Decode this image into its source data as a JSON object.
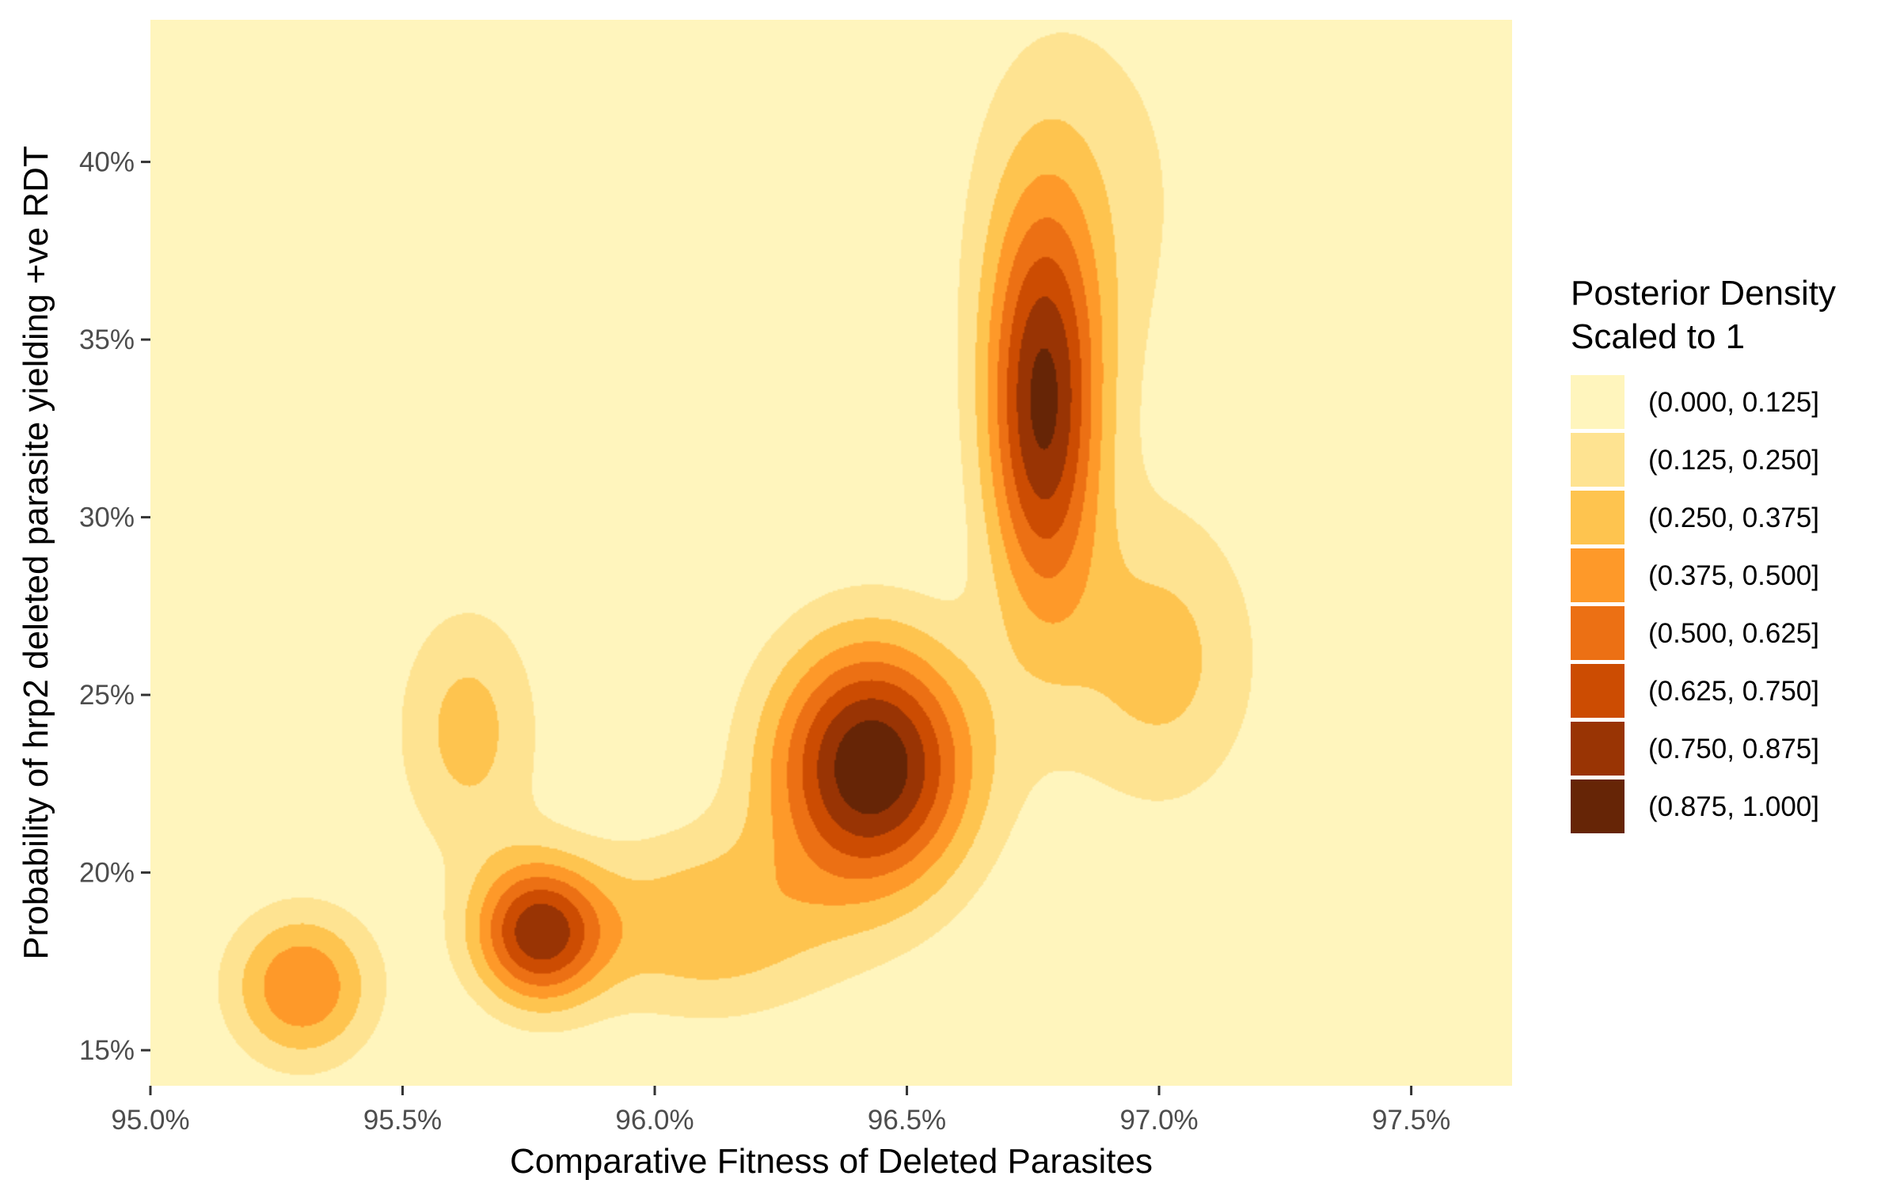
{
  "chart_data": {
    "type": "contour",
    "xlabel": "Comparative Fitness of Deleted Parasites",
    "ylabel": "Probability of hrp2 deleted parasite yielding +ve RDT",
    "xlim": [
      0.95,
      0.977
    ],
    "ylim": [
      0.14,
      0.44
    ],
    "x_ticks": [
      {
        "value": 0.95,
        "label": "95.0%"
      },
      {
        "value": 0.955,
        "label": "95.5%"
      },
      {
        "value": 0.96,
        "label": "96.0%"
      },
      {
        "value": 0.965,
        "label": "96.5%"
      },
      {
        "value": 0.97,
        "label": "97.0%"
      },
      {
        "value": 0.975,
        "label": "97.5%"
      }
    ],
    "y_ticks": [
      {
        "value": 0.15,
        "label": "15%"
      },
      {
        "value": 0.2,
        "label": "20%"
      },
      {
        "value": 0.25,
        "label": "25%"
      },
      {
        "value": 0.3,
        "label": "30%"
      },
      {
        "value": 0.35,
        "label": "35%"
      },
      {
        "value": 0.4,
        "label": "40%"
      }
    ],
    "grid": false,
    "legend": {
      "position": "right",
      "title_lines": [
        "Posterior Density",
        "Scaled to 1"
      ],
      "entries": [
        {
          "label": "(0.000, 0.125]",
          "color": "#fff5bd"
        },
        {
          "label": "(0.125, 0.250]",
          "color": "#fee391"
        },
        {
          "label": "(0.250, 0.375]",
          "color": "#fec44f"
        },
        {
          "label": "(0.375, 0.500]",
          "color": "#fe9929"
        },
        {
          "label": "(0.500, 0.625]",
          "color": "#ec7014"
        },
        {
          "label": "(0.625, 0.750]",
          "color": "#cc4c02"
        },
        {
          "label": "(0.750, 0.875]",
          "color": "#993404"
        },
        {
          "label": "(0.875, 1.000]",
          "color": "#662506"
        }
      ]
    },
    "density_peaks": [
      {
        "x": 0.9677,
        "y": 0.33,
        "sx": 0.0008,
        "sy": 0.04,
        "w": 0.85
      },
      {
        "x": 0.9643,
        "y": 0.23,
        "sx": 0.0014,
        "sy": 0.025,
        "w": 1.0
      },
      {
        "x": 0.9577,
        "y": 0.183,
        "sx": 0.0009,
        "sy": 0.014,
        "w": 0.8
      },
      {
        "x": 0.9563,
        "y": 0.24,
        "sx": 0.001,
        "sy": 0.025,
        "w": 0.3
      },
      {
        "x": 0.953,
        "y": 0.168,
        "sx": 0.001,
        "sy": 0.015,
        "w": 0.5
      },
      {
        "x": 0.961,
        "y": 0.185,
        "sx": 0.0018,
        "sy": 0.018,
        "w": 0.35
      },
      {
        "x": 0.9685,
        "y": 0.39,
        "sx": 0.0018,
        "sy": 0.045,
        "w": 0.18
      },
      {
        "x": 0.97,
        "y": 0.26,
        "sx": 0.0014,
        "sy": 0.03,
        "w": 0.3
      }
    ]
  }
}
